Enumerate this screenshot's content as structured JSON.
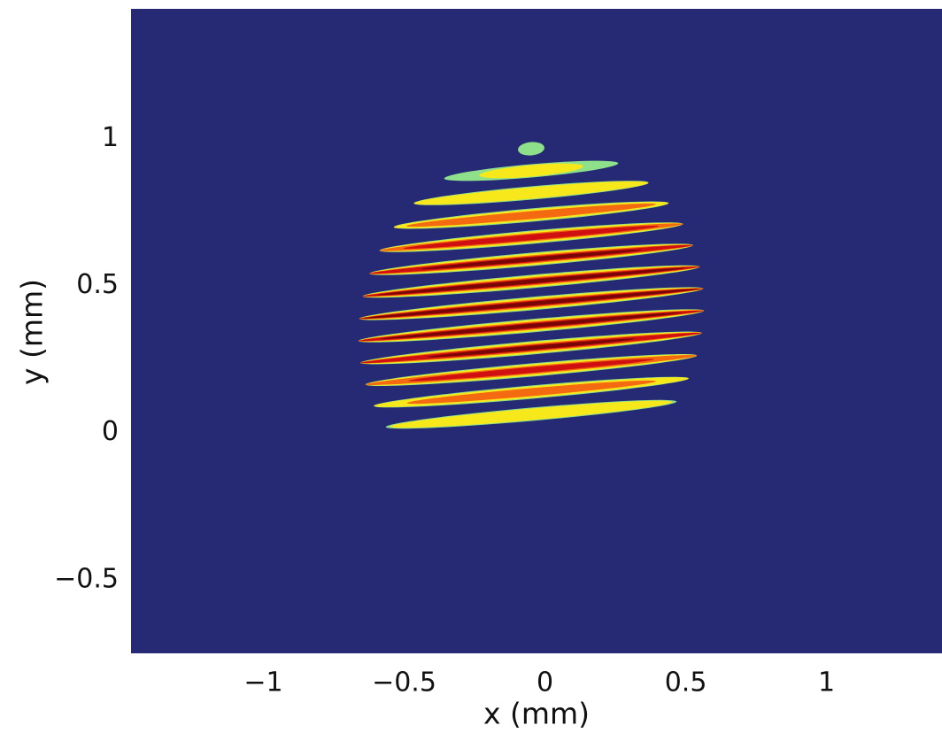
{
  "chart_data": {
    "type": "image",
    "x_label": "x  (mm)",
    "y_label": "y  (mm)",
    "xlim": [
      -1.47,
      1.41
    ],
    "ylim": [
      -0.75,
      1.44
    ],
    "xticks": [
      {
        "value": -1,
        "label": "−1"
      },
      {
        "value": -0.5,
        "label": "−0.5"
      },
      0,
      0.5,
      1
    ],
    "yticks": [
      {
        "value": -0.5,
        "label": "−0.5"
      },
      0,
      0.5,
      1
    ],
    "background": "#262a75"
  }
}
